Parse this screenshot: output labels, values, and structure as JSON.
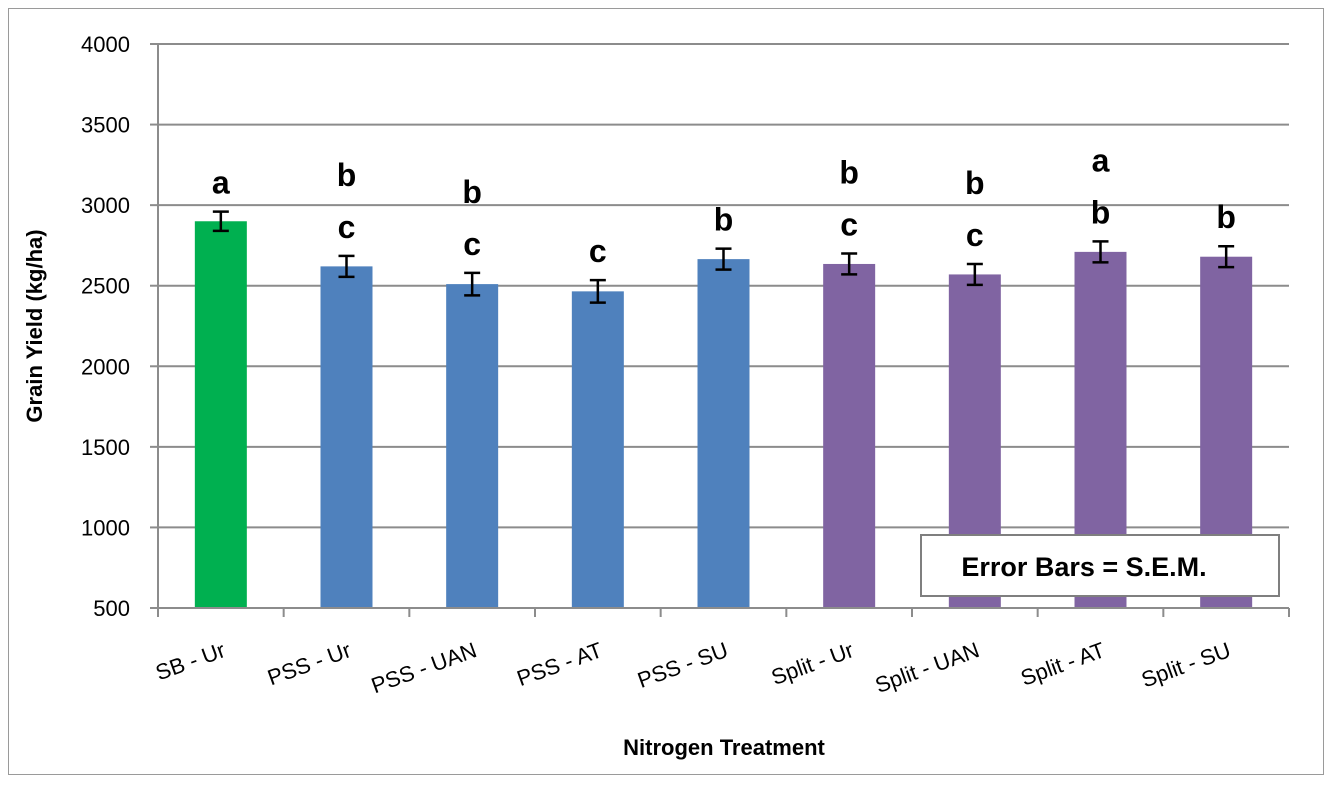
{
  "chart_data": {
    "type": "bar",
    "title": "",
    "xlabel": "Nitrogen Treatment",
    "ylabel": "Grain Yield (kg/ha)",
    "ylim": [
      500,
      4000
    ],
    "yticks": [
      "500",
      "1000",
      "1500",
      "2000",
      "2500",
      "3000",
      "3500",
      "4000"
    ],
    "grid": true,
    "categories": [
      "SB - Ur",
      "PSS - Ur",
      "PSS - UAN",
      "PSS - AT",
      "PSS - SU",
      "Split - Ur",
      "Split - UAN",
      "Split - AT",
      "Split - SU"
    ],
    "values": [
      2900,
      2620,
      2510,
      2465,
      2665,
      2635,
      2570,
      2710,
      2680
    ],
    "errors": [
      60,
      65,
      70,
      70,
      65,
      65,
      65,
      65,
      65
    ],
    "colors": [
      "#00b050",
      "#4f81bd",
      "#4f81bd",
      "#4f81bd",
      "#4f81bd",
      "#8064a2",
      "#8064a2",
      "#8064a2",
      "#8064a2"
    ],
    "significance_letters": [
      [
        "a"
      ],
      [
        "b",
        "c"
      ],
      [
        "b",
        "c"
      ],
      [
        "c"
      ],
      [
        "b"
      ],
      [
        "b",
        "c"
      ],
      [
        "b",
        "c"
      ],
      [
        "a",
        "b"
      ],
      [
        "b"
      ]
    ],
    "annotation": "Error Bars = S.E.M."
  }
}
